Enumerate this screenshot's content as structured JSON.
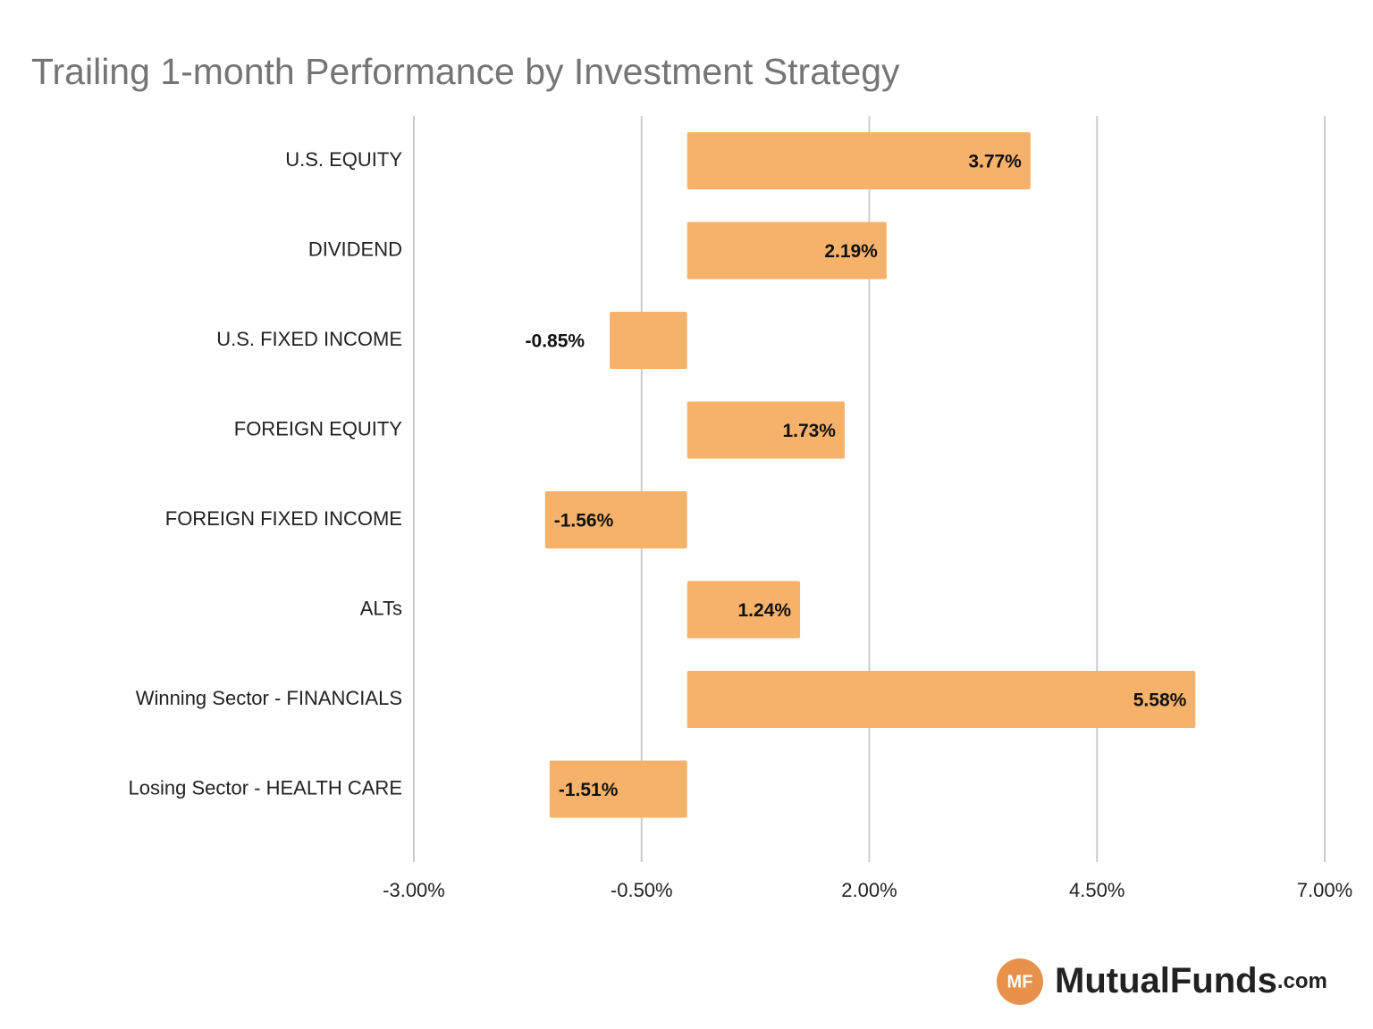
{
  "chart_data": {
    "type": "bar",
    "orientation": "horizontal",
    "title": "Trailing 1-month Performance by Investment Strategy",
    "categories": [
      "U.S. EQUITY",
      "DIVIDEND",
      "U.S. FIXED INCOME",
      "FOREIGN EQUITY",
      "FOREIGN FIXED INCOME",
      "ALTs",
      "Winning Sector - FINANCIALS",
      "Losing Sector - HEALTH CARE"
    ],
    "values": [
      3.77,
      2.19,
      -0.85,
      1.73,
      -1.56,
      1.24,
      5.58,
      -1.51
    ],
    "value_labels": [
      "3.77%",
      "2.19%",
      "-0.85%",
      "1.73%",
      "-1.56%",
      "1.24%",
      "5.58%",
      "-1.51%"
    ],
    "color": "#f6b26b",
    "xlim": [
      -3,
      7
    ],
    "xticks": [
      {
        "value": -3,
        "label": "-3.00%"
      },
      {
        "value": -0.5,
        "label": "-0.50%"
      },
      {
        "value": 2,
        "label": "2.00%"
      },
      {
        "value": 4.5,
        "label": "4.50%"
      },
      {
        "value": 7,
        "label": "7.00%"
      }
    ],
    "grid": true
  },
  "logo": {
    "badge": "MF",
    "name": "MutualFunds",
    "suffix": ".com"
  }
}
